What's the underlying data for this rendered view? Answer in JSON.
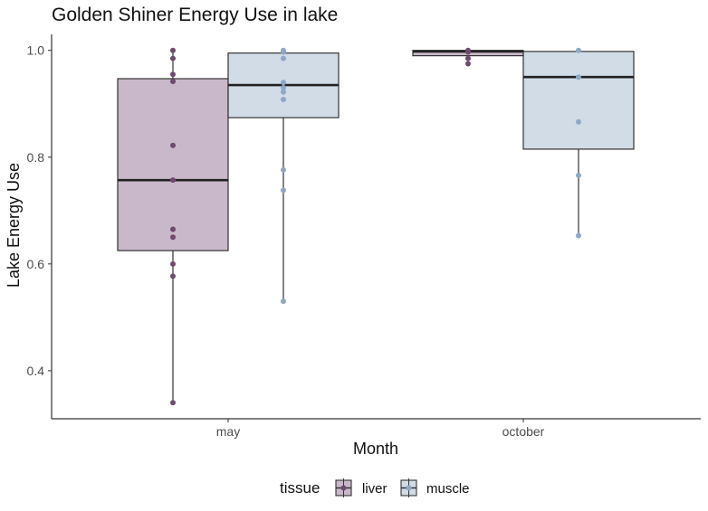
{
  "chart_data": {
    "type": "box",
    "title": "Golden Shiner Energy Use in lake",
    "xlabel": "Month",
    "ylabel": "Lake Energy Use",
    "categories": [
      "may",
      "october"
    ],
    "ylim": [
      0.31,
      1.03
    ],
    "yticks": [
      0.4,
      0.6,
      0.8,
      1.0
    ],
    "ytick_labels": [
      "0.4",
      "0.6",
      "0.8",
      "1.0"
    ],
    "grid": false,
    "legend": {
      "title": "tissue",
      "position": "bottom",
      "entries": [
        "liver",
        "muscle"
      ]
    },
    "series": [
      {
        "name": "liver",
        "fill": "#c9b8c9",
        "point_color": "#6e4a6e",
        "boxes": [
          {
            "category": "may",
            "min": 0.34,
            "q1": 0.625,
            "median": 0.757,
            "q3": 0.947,
            "max": 1.0,
            "points": [
              1.0,
              0.985,
              0.955,
              0.942,
              0.822,
              0.757,
              0.665,
              0.65,
              0.6,
              0.577,
              0.34
            ]
          },
          {
            "category": "october",
            "min": 0.975,
            "q1": 0.99,
            "median": 0.998,
            "q3": 1.0,
            "max": 1.0,
            "points": [
              1.0,
              0.997,
              0.985,
              0.975
            ]
          }
        ]
      },
      {
        "name": "muscle",
        "fill": "#d1dce6",
        "point_color": "#8fa8c4",
        "boxes": [
          {
            "category": "may",
            "min": 0.53,
            "q1": 0.874,
            "median": 0.935,
            "q3": 0.995,
            "max": 1.0,
            "points": [
              1.0,
              0.997,
              0.985,
              0.94,
              0.93,
              0.922,
              0.908,
              0.776,
              0.738,
              0.53
            ]
          },
          {
            "category": "october",
            "min": 0.653,
            "q1": 0.815,
            "median": 0.95,
            "q3": 0.998,
            "max": 1.0,
            "points": [
              1.0,
              0.95,
              0.866,
              0.766,
              0.653
            ]
          }
        ]
      }
    ]
  }
}
